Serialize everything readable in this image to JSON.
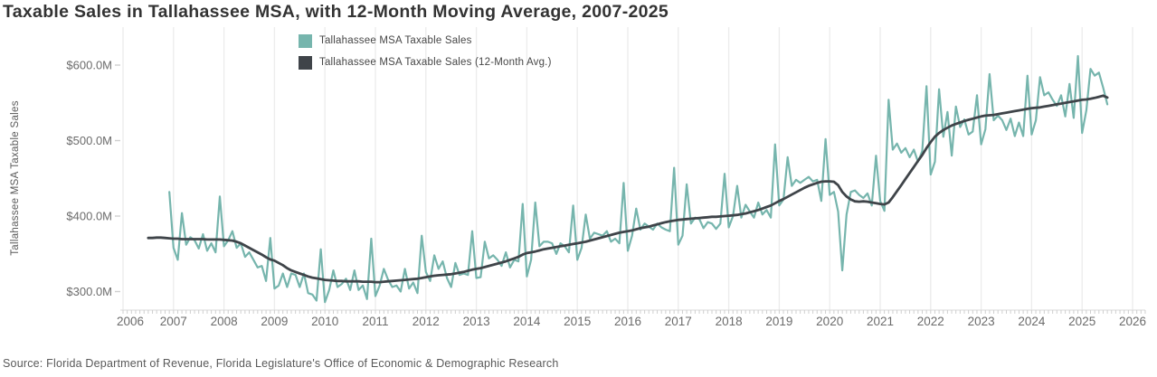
{
  "title": "Taxable Sales in Tallahassee MSA, with 12-Month Moving Average, 2007-2025",
  "source": "Source: Florida Department of Revenue, Florida Legislature's Office of Economic & Demographic Research",
  "colors": {
    "monthly_line": "#76b5ad",
    "average_line": "#3f4449",
    "gridline": "#ececec",
    "axis_line": "#d9d9d9",
    "tick": "#cfcfcf",
    "axis_text": "#6b6b6b",
    "title_text": "#333333"
  },
  "legend": {
    "items": [
      {
        "label": "Tallahassee MSA Taxable Sales",
        "color": "#76b5ad"
      },
      {
        "label": "Tallahassee MSA Taxable Sales (12-Month Avg.)",
        "color": "#3f4449"
      }
    ]
  },
  "y_axis": {
    "title": "Tallahassee MSA Taxable Sales",
    "ticks": [
      {
        "value": 600,
        "label": "$600.0M"
      },
      {
        "value": 500,
        "label": "$500.0M"
      },
      {
        "value": 400,
        "label": "$400.0M"
      },
      {
        "value": 300,
        "label": "$300.0M"
      }
    ]
  },
  "x_axis": {
    "ticks": [
      2006,
      2007,
      2008,
      2009,
      2010,
      2011,
      2012,
      2013,
      2014,
      2015,
      2016,
      2017,
      2018,
      2019,
      2020,
      2021,
      2022,
      2023,
      2024,
      2025,
      2026
    ]
  },
  "chart_data": {
    "type": "line",
    "title": "Taxable Sales in Tallahassee MSA, with 12-Month Moving Average, 2007-2025",
    "xlabel": "",
    "ylabel": "Tallahassee MSA Taxable Sales",
    "y_unit": "USD millions",
    "x_unit": "month",
    "xlim": [
      2006,
      2026
    ],
    "ylim": [
      280,
      620
    ],
    "grid": "vertical-years-only",
    "legend_position": "top-center",
    "series": [
      {
        "name": "Tallahassee MSA Taxable Sales",
        "color": "#76b5ad",
        "start_year": 2006,
        "start_month": 12,
        "values": [
          432,
          358,
          342,
          404,
          362,
          372,
          368,
          357,
          376,
          354,
          364,
          352,
          426,
          360,
          368,
          380,
          358,
          364,
          346,
          352,
          342,
          332,
          334,
          314,
          371,
          304,
          308,
          324,
          306,
          324,
          322,
          306,
          324,
          298,
          296,
          288,
          356,
          286,
          302,
          328,
          306,
          310,
          317,
          302,
          328,
          302,
          308,
          290,
          370,
          294,
          308,
          330,
          316,
          306,
          308,
          300,
          330,
          304,
          312,
          298,
          374,
          326,
          314,
          348,
          330,
          340,
          318,
          306,
          338,
          322,
          324,
          322,
          380,
          318,
          319,
          366,
          344,
          348,
          342,
          334,
          352,
          332,
          342,
          340,
          416,
          320,
          342,
          418,
          360,
          366,
          366,
          364,
          350,
          364,
          360,
          352,
          414,
          342,
          358,
          402,
          370,
          378,
          376,
          374,
          380,
          366,
          370,
          364,
          444,
          354,
          374,
          410,
          382,
          390,
          386,
          382,
          390,
          385,
          382,
          380,
          464,
          362,
          374,
          442,
          390,
          398,
          396,
          384,
          392,
          390,
          383,
          390,
          456,
          385,
          400,
          440,
          398,
          415,
          406,
          398,
          418,
          402,
          408,
          398,
          495,
          414,
          422,
          478,
          440,
          448,
          444,
          448,
          452,
          446,
          448,
          420,
          502,
          428,
          432,
          406,
          328,
          402,
          432,
          434,
          428,
          424,
          430,
          414,
          480,
          420,
          407,
          554,
          488,
          496,
          484,
          490,
          478,
          488,
          472,
          486,
          572,
          455,
          472,
          568,
          505,
          538,
          480,
          545,
          518,
          528,
          508,
          512,
          560,
          495,
          515,
          588,
          527,
          533,
          527,
          514,
          529,
          506,
          524,
          506,
          586,
          508,
          527,
          584,
          560,
          564,
          554,
          546,
          560,
          532,
          575,
          530,
          612,
          510,
          540,
          595,
          586,
          590,
          570,
          548
        ]
      },
      {
        "name": "Tallahassee MSA Taxable Sales (12-Month Avg.)",
        "color": "#3f4449",
        "start_year": 2006,
        "start_month": 7,
        "values": [
          371,
          371,
          371.5,
          371.5,
          371,
          370.5,
          370,
          370,
          369.5,
          369.5,
          369.5,
          369.5,
          369.5,
          369.5,
          369,
          369,
          369,
          369,
          368.5,
          368,
          367.5,
          366,
          364,
          361,
          358,
          355,
          352,
          349,
          345.5,
          342.5,
          341,
          338,
          335,
          331,
          328,
          326,
          324,
          322,
          320,
          318.5,
          317.5,
          316.5,
          315.5,
          315,
          314.5,
          314,
          314,
          313.5,
          313.5,
          313.5,
          313.5,
          313,
          313,
          313,
          312.5,
          312.5,
          313,
          313.5,
          314,
          314.5,
          315,
          315.5,
          316,
          316.5,
          317,
          318,
          319,
          320,
          321,
          321.5,
          322,
          322.5,
          323,
          324,
          325,
          326,
          327.5,
          329,
          330,
          331,
          332.5,
          334,
          335.5,
          337,
          338.5,
          340,
          342,
          344,
          346,
          349,
          351,
          352,
          353,
          354.5,
          356,
          357,
          358,
          359,
          360,
          361,
          362,
          363,
          364,
          365,
          366,
          367.5,
          369,
          370.5,
          372,
          373.5,
          375,
          376.5,
          378,
          379,
          380,
          381,
          382.5,
          384,
          385,
          386,
          387.5,
          389,
          390.5,
          392,
          393,
          394,
          395,
          395.5,
          396,
          396.5,
          397,
          397.5,
          398,
          398.5,
          399,
          399,
          399.5,
          400,
          400.5,
          401,
          401.5,
          402.5,
          403.5,
          405,
          406.5,
          408,
          410,
          412,
          414,
          417,
          420,
          422.5,
          425.5,
          428.5,
          431.5,
          434.5,
          437.5,
          440,
          442,
          444,
          445.5,
          446,
          446,
          445.5,
          441,
          432,
          426,
          422,
          419.5,
          419,
          419.5,
          419,
          418,
          417,
          416,
          415.5,
          418,
          425,
          433,
          441,
          449,
          457,
          465,
          473,
          481,
          490,
          498,
          505,
          510,
          514,
          517,
          520,
          522,
          524,
          526,
          527.5,
          529,
          530.5,
          532,
          533,
          533.5,
          534,
          535,
          536,
          537,
          538,
          539,
          540,
          541,
          542,
          543,
          543.5,
          544,
          545,
          546,
          547,
          548,
          549,
          550,
          551,
          552,
          553,
          554,
          554.5,
          555.5,
          556.5,
          558,
          559.5,
          557
        ]
      }
    ]
  }
}
